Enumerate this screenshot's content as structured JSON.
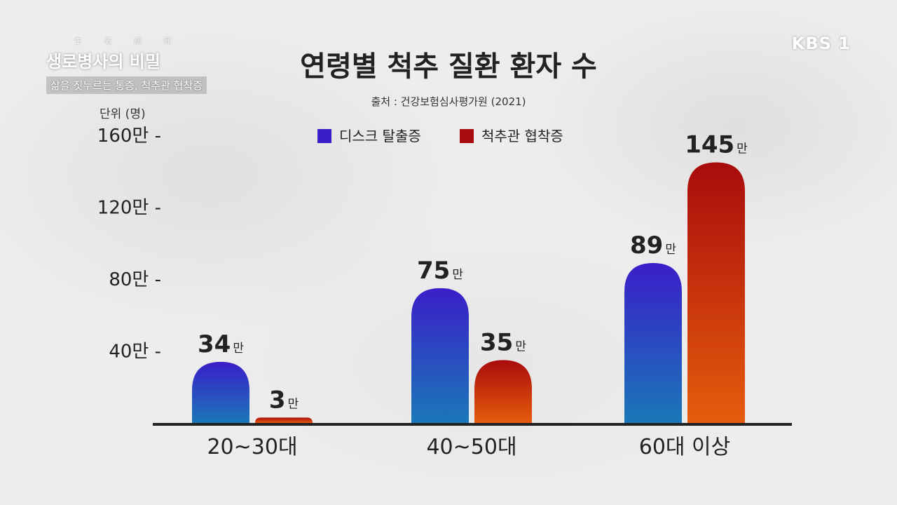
{
  "overlay": {
    "show_tagline": "生 老 病 死",
    "show_title": "생로병사의 비밀",
    "episode_subtitle": "삶을 짓누르는 통증, 척추관 협착증",
    "channel_logo": "KBS 1"
  },
  "colors": {
    "disc_top": "#3a1ec8",
    "disc_bottom": "#1a78b8",
    "stenosis_top": "#a80c0c",
    "stenosis_bottom": "#e65c0c",
    "axis": "#222222",
    "text": "#222222"
  },
  "chart_data": {
    "type": "bar",
    "title": "연령별 척추 질환 환자 수",
    "source": "출처 : 건강보험심사평가원 (2021)",
    "unit_label": "단위 (명)",
    "categories": [
      "20~30대",
      "40~50대",
      "60대 이상"
    ],
    "series": [
      {
        "name": "디스크 탈출증",
        "values": [
          34,
          75,
          89
        ]
      },
      {
        "name": "척추관 협착증",
        "values": [
          3,
          35,
          145
        ]
      }
    ],
    "value_suffix": "만",
    "y_ticks": [
      "40만 -",
      "80만 -",
      "120만 -",
      "160만 -"
    ],
    "y_tick_values": [
      40,
      80,
      120,
      160
    ],
    "ylim": [
      0,
      160
    ],
    "legend_position": "top-center",
    "grid": false
  }
}
